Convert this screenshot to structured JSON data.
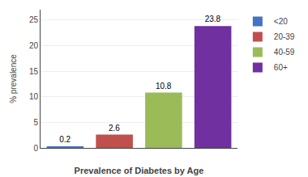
{
  "chart_data": {
    "type": "bar",
    "categories": [
      "<20",
      "20-39",
      "40-59",
      "60+"
    ],
    "values": [
      0.2,
      2.6,
      10.8,
      23.8
    ],
    "colors": [
      "#4472c4",
      "#c0504d",
      "#9bbb59",
      "#7030a0"
    ],
    "xlabel": "Prevalence of Diabetes by Age",
    "ylabel": "% prevalence",
    "ylim": [
      0,
      27
    ],
    "yticks": [
      0,
      5,
      10,
      15,
      20,
      25
    ],
    "grid": true,
    "legend": "right",
    "data_labels": true,
    "tick_labels": "y"
  }
}
